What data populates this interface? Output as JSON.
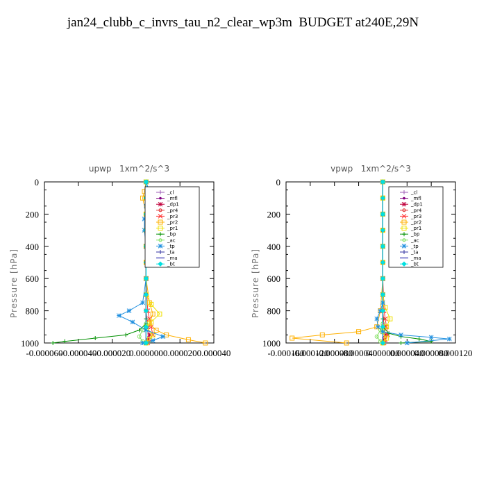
{
  "title": "jan24_clubb_c_invrs_tau_n2_clear_wp3m  BUDGET at240E,29N",
  "chart_data": [
    {
      "type": "line",
      "title": "upwp   1xm^2/s^3",
      "ylabel": "Pressure [hPa]",
      "ylim": [
        1000,
        0
      ],
      "xlim": [
        -6e-05,
        4e-05
      ],
      "xticks": [
        "-0.000060",
        "-0.000040",
        "-0.000020",
        "0.000000",
        "0.000020",
        "0.000040"
      ],
      "xtick_values": [
        -6e-05,
        -4e-05,
        -2e-05,
        0,
        2e-05,
        4e-05
      ],
      "yticks": [
        "0",
        "200",
        "400",
        "600",
        "800",
        "1000"
      ],
      "ytick_values": [
        0,
        200,
        400,
        600,
        800,
        1000
      ],
      "legend_position": "top-right",
      "series": [
        {
          "name": "_cl",
          "color": "#9b59b6",
          "marker": "plus",
          "x": [
            0,
            0,
            0,
            0,
            0,
            0,
            0,
            0,
            0,
            0,
            0
          ],
          "y": [
            0,
            100,
            200,
            300,
            400,
            500,
            600,
            700,
            800,
            900,
            1000
          ]
        },
        {
          "name": "_mfl",
          "color": "#800080",
          "marker": "dot",
          "x": [
            0,
            0,
            0,
            0,
            0,
            0,
            0,
            0,
            0,
            0,
            0
          ],
          "y": [
            0,
            100,
            200,
            300,
            400,
            500,
            600,
            700,
            800,
            900,
            1000
          ]
        },
        {
          "name": "_dp1",
          "color": "#c0003c",
          "marker": "star",
          "x": [
            0,
            0,
            0,
            0,
            0,
            0,
            0,
            0,
            0,
            1e-06,
            2e-06,
            1e-06,
            0
          ],
          "y": [
            0,
            100,
            200,
            300,
            400,
            500,
            600,
            700,
            800,
            900,
            950,
            980,
            1000
          ]
        },
        {
          "name": "_pr4",
          "color": "#e03030",
          "marker": "circle",
          "x": [
            0,
            0,
            0,
            0,
            0,
            0,
            0,
            0,
            0,
            0
          ],
          "y": [
            0,
            100,
            200,
            300,
            400,
            500,
            600,
            800,
            900,
            1000
          ]
        },
        {
          "name": "_pr3",
          "color": "#ff3030",
          "marker": "cross",
          "x": [
            0,
            0,
            0,
            0,
            0,
            0,
            0,
            1e-06,
            2e-06,
            3e-06,
            4e-06,
            2e-06,
            1e-06
          ],
          "y": [
            0,
            100,
            200,
            300,
            400,
            500,
            600,
            800,
            850,
            900,
            950,
            980,
            1000
          ]
        },
        {
          "name": "_pr2",
          "color": "#ffb000",
          "marker": "square",
          "x": [
            0,
            -1e-06,
            -2e-06,
            0,
            0,
            0,
            0,
            2e-06,
            4e-06,
            2e-06,
            6e-06,
            1.2e-05,
            2.5e-05,
            3.5e-05
          ],
          "y": [
            0,
            60,
            100,
            200,
            300,
            400,
            600,
            750,
            820,
            880,
            920,
            950,
            980,
            1000
          ]
        },
        {
          "name": "_pr1",
          "color": "#f0e000",
          "marker": "square",
          "x": [
            0,
            0,
            0,
            0,
            0,
            0,
            0,
            3e-06,
            8e-06,
            3e-06,
            0,
            4e-06,
            2e-06,
            0
          ],
          "y": [
            0,
            100,
            200,
            300,
            400,
            500,
            700,
            760,
            820,
            870,
            900,
            950,
            980,
            1000
          ]
        },
        {
          "name": "_bp",
          "color": "#009000",
          "marker": "plus",
          "x": [
            0,
            0,
            0,
            0,
            0,
            0,
            0,
            -4e-06,
            -1.2e-05,
            -3e-05,
            -4.8e-05,
            -5.5e-05
          ],
          "y": [
            0,
            200,
            400,
            600,
            800,
            850,
            880,
            920,
            950,
            970,
            990,
            1000
          ]
        },
        {
          "name": "_ac",
          "color": "#80e060",
          "marker": "circle",
          "x": [
            0,
            0,
            0,
            0,
            0,
            0,
            -2e-06,
            -4e-06,
            -2e-06,
            0
          ],
          "y": [
            0,
            200,
            400,
            600,
            800,
            880,
            920,
            960,
            990,
            1000
          ]
        },
        {
          "name": "_tp",
          "color": "#2090e0",
          "marker": "star",
          "x": [
            0,
            2e-06,
            1e-06,
            0,
            -1e-06,
            -1e-06,
            0,
            0,
            -2e-06,
            -1e-05,
            -1.6e-05,
            -8e-06,
            0,
            1e-05,
            4e-06,
            -2e-06
          ],
          "y": [
            0,
            60,
            100,
            150,
            230,
            300,
            400,
            600,
            750,
            800,
            830,
            870,
            920,
            960,
            985,
            1000
          ]
        },
        {
          "name": "_ta",
          "color": "#3030a0",
          "marker": "plus",
          "x": [
            0,
            0,
            0,
            0,
            0,
            0,
            0,
            0,
            0,
            0,
            0
          ],
          "y": [
            0,
            100,
            200,
            300,
            400,
            500,
            600,
            700,
            800,
            900,
            1000
          ]
        },
        {
          "name": "_ma",
          "color": "#0000a0",
          "marker": "none",
          "x": [
            0,
            0,
            0,
            0,
            0,
            0,
            0,
            0,
            0,
            0,
            0
          ],
          "y": [
            0,
            100,
            200,
            300,
            400,
            500,
            600,
            700,
            800,
            900,
            1000
          ]
        },
        {
          "name": "_bt",
          "color": "#00e0e0",
          "marker": "diamond",
          "x": [
            0,
            0,
            0,
            0,
            0,
            0,
            0,
            0,
            0,
            0,
            0
          ],
          "y": [
            0,
            100,
            200,
            300,
            400,
            500,
            600,
            700,
            800,
            900,
            1000
          ]
        }
      ]
    },
    {
      "type": "line",
      "title": "vpwp   1xm^2/s^3",
      "ylabel": "Pressure [hPa]",
      "ylim": [
        1000,
        0
      ],
      "xlim": [
        -0.00016,
        0.00012
      ],
      "xticks": [
        "-0.000160",
        "-0.000120",
        "-0.000080",
        "-0.000040",
        "0.000000",
        "0.000040",
        "0.000080",
        "0.000120"
      ],
      "xtick_values": [
        -0.00016,
        -0.00012,
        -8e-05,
        -4e-05,
        0,
        4e-05,
        8e-05,
        0.00012
      ],
      "yticks": [
        "0",
        "200",
        "400",
        "600",
        "800",
        "1000"
      ],
      "ytick_values": [
        0,
        200,
        400,
        600,
        800,
        1000
      ],
      "legend_position": "top-right",
      "series": [
        {
          "name": "_cl",
          "color": "#9b59b6",
          "marker": "plus",
          "x": [
            0,
            0,
            0,
            0,
            0,
            0,
            0,
            0,
            0,
            0,
            0
          ],
          "y": [
            0,
            100,
            200,
            300,
            400,
            500,
            600,
            700,
            800,
            900,
            1000
          ]
        },
        {
          "name": "_mfl",
          "color": "#800080",
          "marker": "dot",
          "x": [
            0,
            0,
            0,
            0,
            0,
            0,
            0,
            0,
            0,
            0,
            0
          ],
          "y": [
            0,
            100,
            200,
            300,
            400,
            500,
            600,
            700,
            800,
            900,
            1000
          ]
        },
        {
          "name": "_dp1",
          "color": "#c0003c",
          "marker": "star",
          "x": [
            0,
            0,
            0,
            0,
            0,
            0,
            0,
            0,
            0,
            2e-06,
            4e-06,
            2e-06,
            0
          ],
          "y": [
            0,
            100,
            200,
            300,
            400,
            500,
            600,
            700,
            800,
            900,
            950,
            980,
            1000
          ]
        },
        {
          "name": "_pr4",
          "color": "#e03030",
          "marker": "circle",
          "x": [
            0,
            0,
            0,
            0,
            0,
            0,
            0,
            0,
            0,
            0
          ],
          "y": [
            0,
            100,
            200,
            300,
            400,
            500,
            600,
            800,
            900,
            1000
          ]
        },
        {
          "name": "_pr3",
          "color": "#ff3030",
          "marker": "cross",
          "x": [
            0,
            0,
            0,
            0,
            0,
            0,
            0,
            2e-06,
            4e-06,
            6e-06,
            8e-06,
            4e-06,
            2e-06
          ],
          "y": [
            0,
            100,
            200,
            300,
            400,
            500,
            600,
            800,
            850,
            900,
            950,
            980,
            1000
          ]
        },
        {
          "name": "_pr2",
          "color": "#ffb000",
          "marker": "square",
          "x": [
            0,
            0,
            0,
            0,
            0,
            0,
            0,
            -4e-06,
            -1e-05,
            -4e-05,
            -0.0001,
            -0.00015,
            -6e-05
          ],
          "y": [
            0,
            100,
            200,
            300,
            400,
            500,
            600,
            800,
            900,
            930,
            950,
            970,
            1000
          ]
        },
        {
          "name": "_pr1",
          "color": "#f0e000",
          "marker": "square",
          "x": [
            0,
            0,
            0,
            0,
            0,
            0,
            0,
            4e-06,
            1.2e-05,
            6e-06,
            0,
            6e-06,
            0
          ],
          "y": [
            0,
            100,
            200,
            300,
            400,
            500,
            700,
            780,
            850,
            900,
            930,
            970,
            1000
          ]
        },
        {
          "name": "_bp",
          "color": "#009000",
          "marker": "plus",
          "x": [
            0,
            0,
            0,
            0,
            0,
            0,
            0,
            1e-05,
            3e-05,
            6e-05,
            8e-05,
            3e-05
          ],
          "y": [
            0,
            200,
            400,
            600,
            800,
            850,
            900,
            940,
            960,
            975,
            990,
            1000
          ]
        },
        {
          "name": "_ac",
          "color": "#80e060",
          "marker": "circle",
          "x": [
            0,
            0,
            0,
            0,
            0,
            0,
            -4e-06,
            -1e-05,
            -4e-06,
            0
          ],
          "y": [
            0,
            200,
            400,
            600,
            800,
            880,
            920,
            960,
            990,
            1000
          ]
        },
        {
          "name": "_tp",
          "color": "#2090e0",
          "marker": "star",
          "x": [
            0,
            0,
            0,
            0,
            0,
            0,
            -4e-06,
            -1e-05,
            -8e-06,
            0,
            3e-05,
            8e-05,
            0.00011,
            4e-05
          ],
          "y": [
            0,
            200,
            400,
            600,
            700,
            750,
            800,
            850,
            900,
            930,
            950,
            965,
            975,
            1000
          ]
        },
        {
          "name": "_ta",
          "color": "#3030a0",
          "marker": "plus",
          "x": [
            0,
            0,
            0,
            0,
            0,
            0,
            0,
            0,
            0,
            0,
            0
          ],
          "y": [
            0,
            100,
            200,
            300,
            400,
            500,
            600,
            700,
            800,
            900,
            1000
          ]
        },
        {
          "name": "_ma",
          "color": "#0000a0",
          "marker": "none",
          "x": [
            0,
            0,
            0,
            0,
            0,
            0,
            0,
            0,
            0,
            0,
            0
          ],
          "y": [
            0,
            100,
            200,
            300,
            400,
            500,
            600,
            700,
            800,
            900,
            1000
          ]
        },
        {
          "name": "_bt",
          "color": "#00e0e0",
          "marker": "diamond",
          "x": [
            0,
            0,
            0,
            0,
            0,
            0,
            0,
            0,
            0,
            0,
            0
          ],
          "y": [
            0,
            100,
            200,
            300,
            400,
            500,
            600,
            700,
            800,
            900,
            1000
          ]
        }
      ]
    }
  ]
}
